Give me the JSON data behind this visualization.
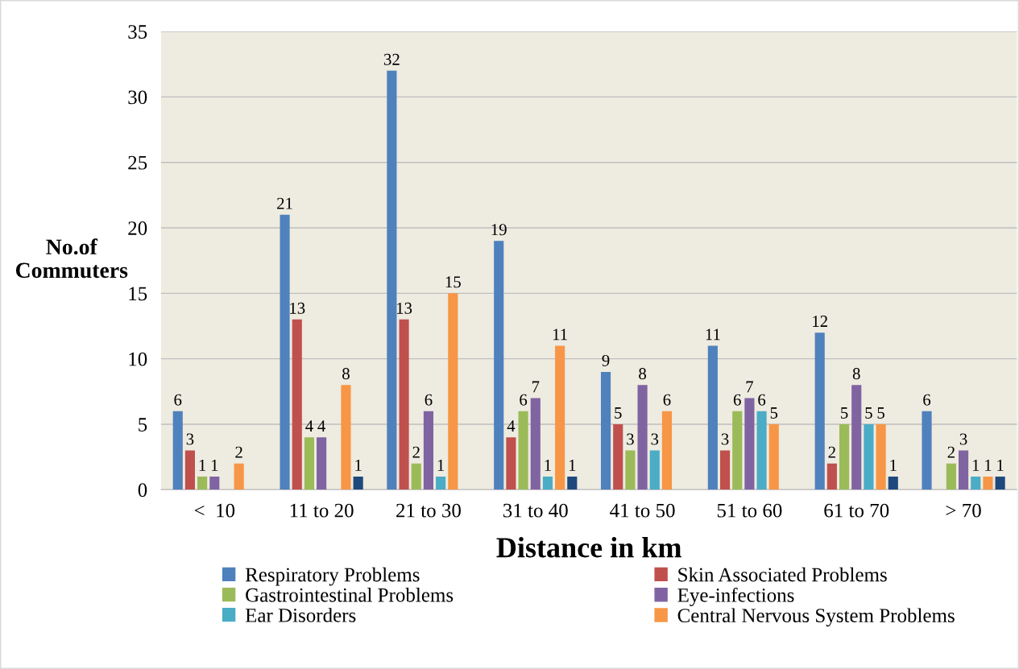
{
  "chart_data": {
    "type": "bar",
    "xlabel": "Distance in km",
    "ylabel": "No.of\nCommuters",
    "categories": [
      "<  10",
      "11 to 20",
      "21 to 30",
      "31 to 40",
      "41 to 50",
      "51 to 60",
      "61 to 70",
      "> 70"
    ],
    "series": [
      {
        "name": "Respiratory Problems",
        "color": "#4f81bd",
        "values": [
          6,
          21,
          32,
          19,
          9,
          11,
          12,
          6
        ]
      },
      {
        "name": "Skin Associated Problems",
        "color": "#c0504d",
        "values": [
          3,
          13,
          13,
          4,
          5,
          3,
          2,
          null
        ]
      },
      {
        "name": "Gastrointestinal Problems",
        "color": "#9bbb59",
        "values": [
          1,
          4,
          2,
          6,
          3,
          6,
          5,
          2
        ]
      },
      {
        "name": "Eye-infections",
        "color": "#8064a2",
        "values": [
          1,
          4,
          6,
          7,
          8,
          7,
          8,
          3
        ]
      },
      {
        "name": "Ear Disorders",
        "color": "#4bacc6",
        "values": [
          null,
          null,
          1,
          1,
          3,
          6,
          5,
          1
        ]
      },
      {
        "name": "Central Nervous System Problems",
        "color": "#f79646",
        "values": [
          2,
          8,
          15,
          11,
          6,
          5,
          5,
          1
        ]
      },
      {
        "color": "#1f497d",
        "values": [
          null,
          1,
          null,
          1,
          null,
          null,
          1,
          1
        ]
      }
    ],
    "ylim": [
      0,
      35
    ],
    "yticks": [
      0,
      5,
      10,
      15,
      20,
      25,
      30,
      35
    ],
    "grid": "y",
    "legend": "bottom",
    "data_labels": true
  }
}
